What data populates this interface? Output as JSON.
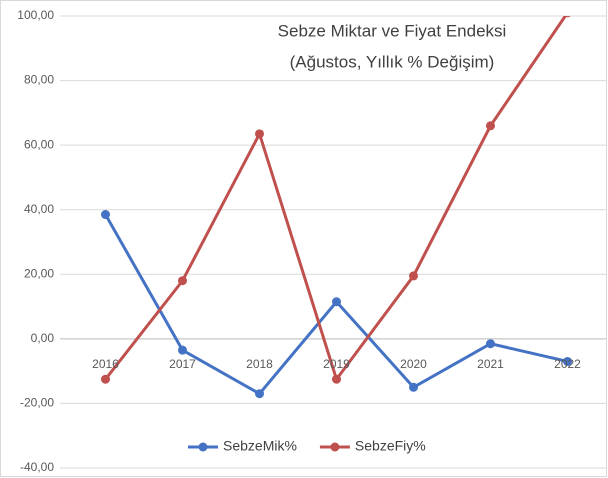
{
  "chart_data": {
    "type": "line",
    "title": "Sebze Miktar ve Fiyat Endeksi",
    "subtitle": "(Ağustos, Yıllık % Değişim)",
    "categories": [
      "2016",
      "2017",
      "2018",
      "2019",
      "2020",
      "2021",
      "2022"
    ],
    "series": [
      {
        "name": "SebzeMik%",
        "color": "#4472c4",
        "values": [
          38.5,
          -3.5,
          -17,
          11.5,
          -15,
          -1.5,
          -7
        ]
      },
      {
        "name": "SebzeFiy%",
        "color": "#c0504d",
        "values": [
          -12.5,
          18,
          63.5,
          -12.5,
          19.5,
          66,
          101
        ]
      }
    ],
    "ylim": [
      -40,
      100
    ],
    "yticks": [
      {
        "value": -40,
        "label": "-40,00"
      },
      {
        "value": -20,
        "label": "-20,00"
      },
      {
        "value": 0,
        "label": "0,00"
      },
      {
        "value": 20,
        "label": "20,00"
      },
      {
        "value": 40,
        "label": "40,00"
      },
      {
        "value": 60,
        "label": "60,00"
      },
      {
        "value": 80,
        "label": "80,00"
      },
      {
        "value": 100,
        "label": "100,00"
      }
    ],
    "grid": true,
    "legend": "bottom"
  }
}
